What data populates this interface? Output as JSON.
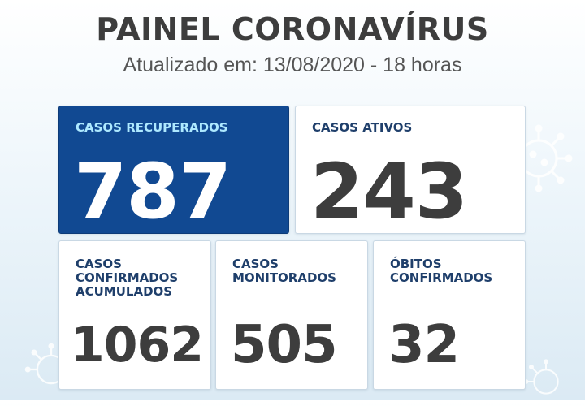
{
  "header": {
    "title": "PAINEL CORONAVÍRUS",
    "updated": "Atualizado em: 13/08/2020 - 18 horas"
  },
  "cards": {
    "recuperados": {
      "label": "CASOS RECUPERADOS",
      "value": "787"
    },
    "ativos": {
      "label": "CASOS ATIVOS",
      "value": "243"
    },
    "confirmados": {
      "label": "CASOS\nCONFIRMADOS\nACUMULADOS",
      "value": "1062"
    },
    "monitorados": {
      "label": "CASOS\nMONITORADOS",
      "value": "505"
    },
    "obitos": {
      "label": "ÓBITOS\nCONFIRMADOS",
      "value": "32"
    }
  },
  "colors": {
    "highlight": "#114992",
    "highlight_label": "#aee9ff",
    "label": "#1f3f6b",
    "value": "#3d3d3d"
  },
  "icons": [
    "virus-icon"
  ]
}
